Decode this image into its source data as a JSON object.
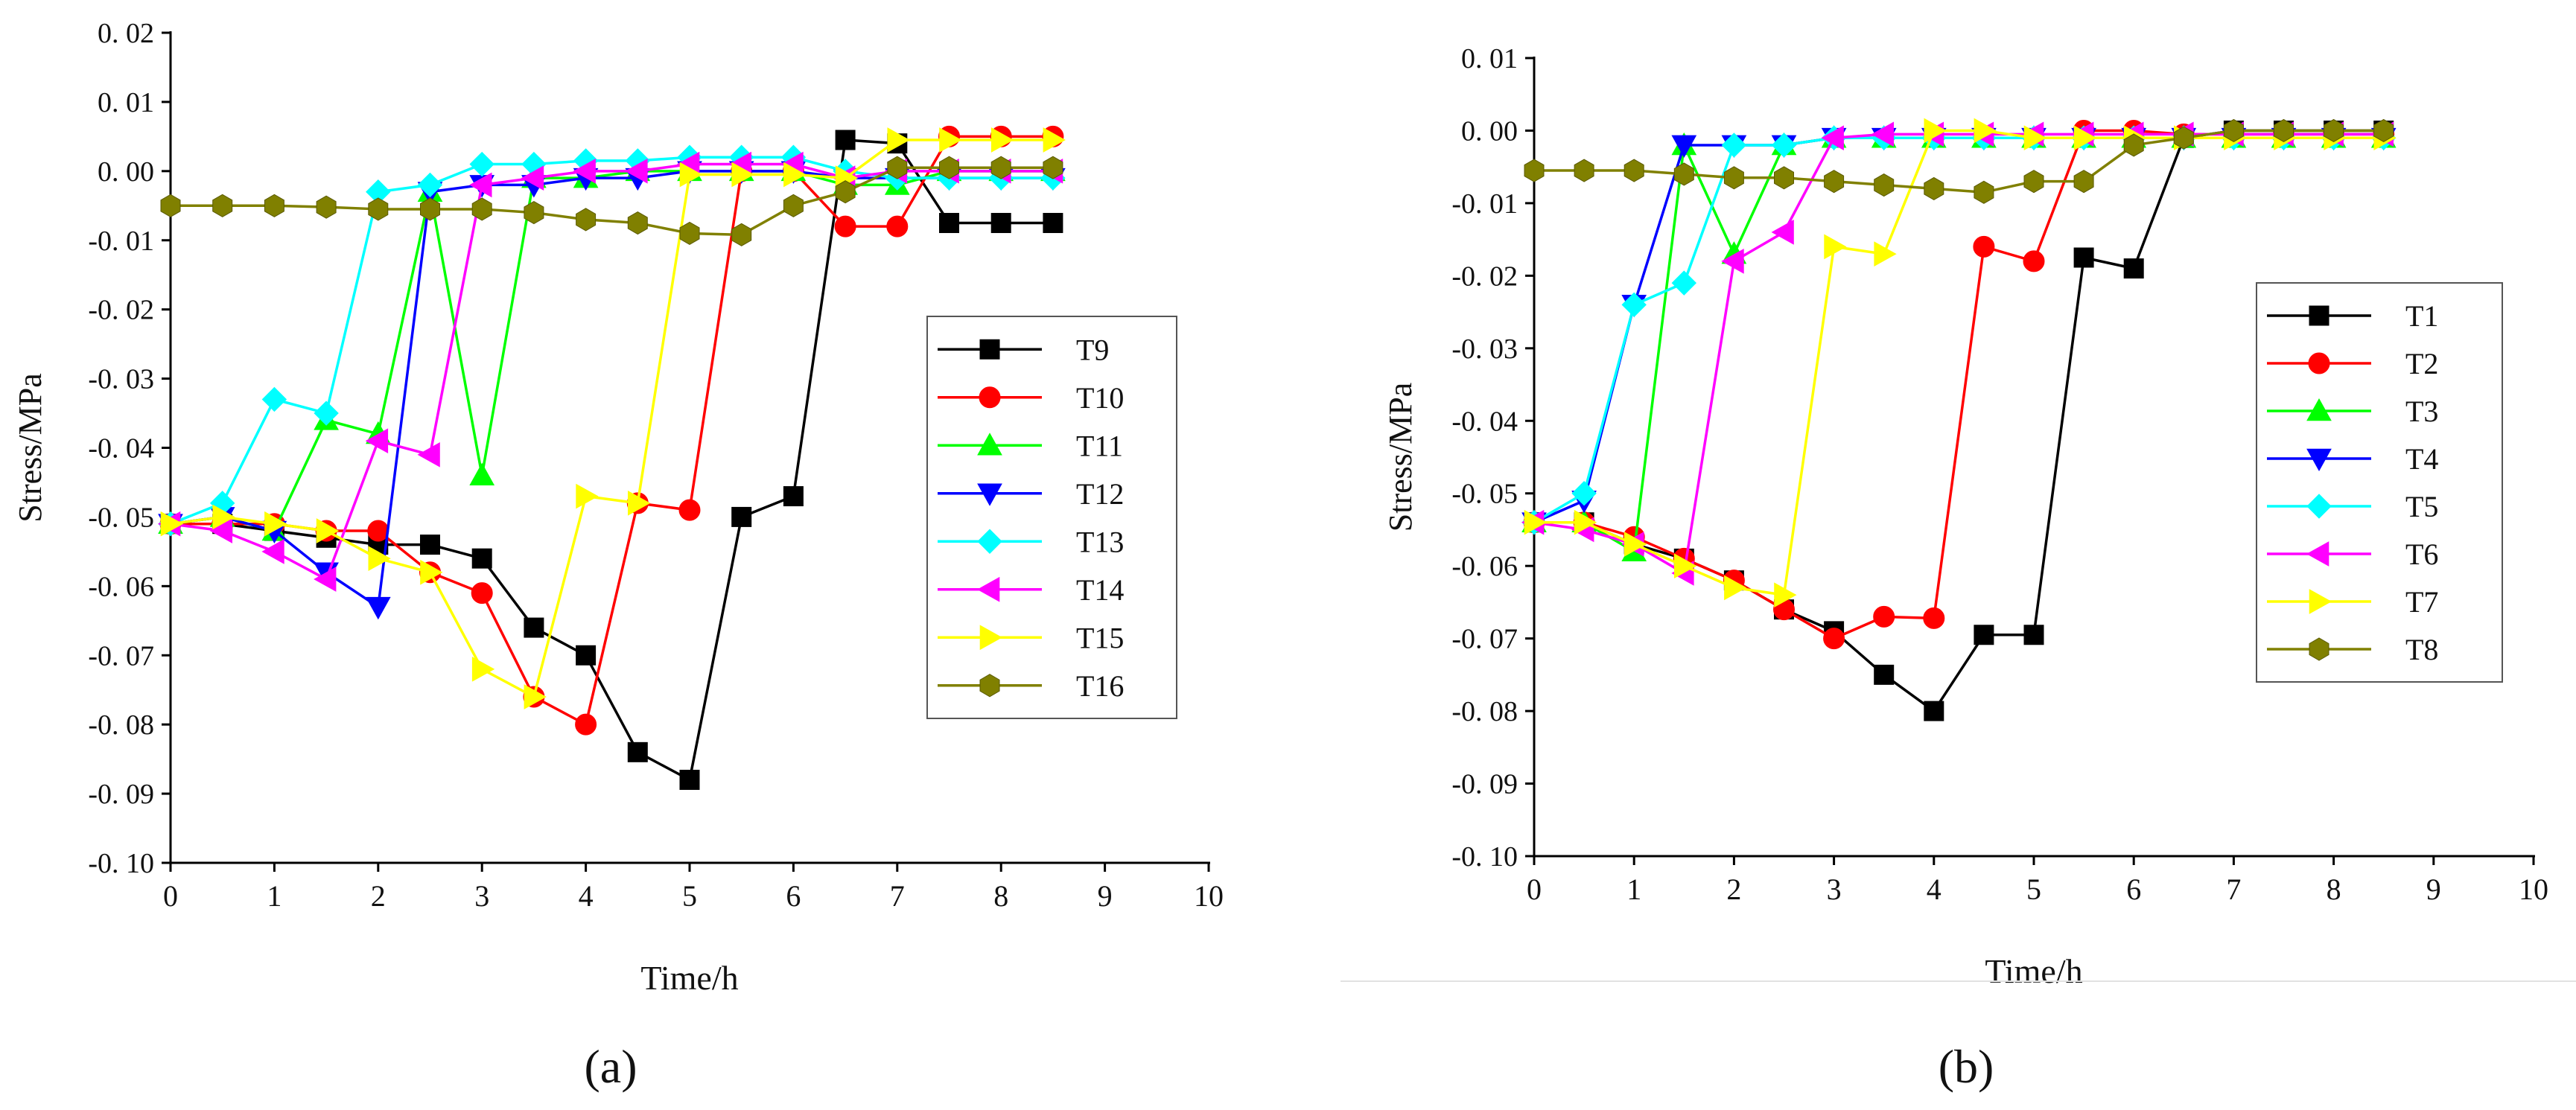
{
  "figure": {
    "panel_labels": [
      "(a)",
      "(b)"
    ]
  },
  "marker_legend": {
    "square": "■",
    "circle": "●",
    "triangle-up": "▲",
    "triangle-down": "▼",
    "diamond": "◆",
    "triangle-left": "◀",
    "triangle-right": "▶",
    "hexagon": "⬢"
  },
  "chart_data": [
    {
      "type": "line",
      "panel": "(a)",
      "title": "",
      "xlabel": "Time/h",
      "ylabel": "Stress/MPa",
      "xlim": [
        0,
        10
      ],
      "ylim": [
        -0.1,
        0.02
      ],
      "xticks": [
        0,
        1,
        2,
        3,
        4,
        5,
        6,
        7,
        8,
        9,
        10
      ],
      "xtick_labels": [
        "0",
        "1",
        "2",
        "3",
        "4",
        "5",
        "6",
        "7",
        "8",
        "9",
        "10"
      ],
      "yticks": [
        0.02,
        0.01,
        0.0,
        -0.01,
        -0.02,
        -0.03,
        -0.04,
        -0.05,
        -0.06,
        -0.07,
        -0.08,
        -0.09,
        -0.1
      ],
      "ytick_labels": [
        "0. 02",
        "0. 01",
        "0. 00",
        "-0. 01",
        "-0. 02",
        "-0. 03",
        "-0. 04",
        "-0. 05",
        "-0. 06",
        "-0. 07",
        "-0. 08",
        "-0. 09",
        "-0. 10"
      ],
      "grid": false,
      "legend_position": "right-middle",
      "series": [
        {
          "name": "T9",
          "color": "#000000",
          "marker": "square",
          "x": [
            0,
            0.5,
            1,
            1.5,
            2,
            2.5,
            3,
            3.5,
            4,
            4.5,
            5,
            5.5,
            6,
            6.5,
            7,
            7.5,
            8,
            8.5
          ],
          "y": [
            -0.051,
            -0.051,
            -0.052,
            -0.053,
            -0.054,
            -0.054,
            -0.056,
            -0.066,
            -0.07,
            -0.084,
            -0.088,
            -0.05,
            -0.047,
            0.0045,
            0.004,
            -0.0075,
            -0.0075,
            -0.0075
          ]
        },
        {
          "name": "T10",
          "color": "#ff0000",
          "marker": "circle",
          "x": [
            0,
            0.5,
            1,
            1.5,
            2,
            2.5,
            3,
            3.5,
            4,
            4.5,
            5,
            5.5,
            6,
            6.5,
            7,
            7.5,
            8,
            8.5
          ],
          "y": [
            -0.051,
            -0.051,
            -0.051,
            -0.052,
            -0.052,
            -0.058,
            -0.061,
            -0.076,
            -0.08,
            -0.048,
            -0.049,
            0.0,
            0.0,
            -0.008,
            -0.008,
            0.005,
            0.005,
            0.005
          ]
        },
        {
          "name": "T11",
          "color": "#00ff00",
          "marker": "triangle-up",
          "x": [
            0,
            0.5,
            1,
            1.5,
            2,
            2.5,
            3,
            3.5,
            4,
            4.5,
            5,
            5.5,
            6,
            6.5,
            7,
            7.5,
            8,
            8.5
          ],
          "y": [
            -0.051,
            -0.05,
            -0.052,
            -0.036,
            -0.038,
            -0.003,
            -0.044,
            -0.001,
            -0.001,
            0.0,
            0.0,
            0.0,
            0.0,
            -0.002,
            -0.002,
            0.0,
            0.0,
            0.0
          ]
        },
        {
          "name": "T12",
          "color": "#0000ff",
          "marker": "triangle-down",
          "x": [
            0,
            0.5,
            1,
            1.5,
            2,
            2.5,
            3,
            3.5,
            4,
            4.5,
            5,
            5.5,
            6,
            6.5,
            7,
            7.5,
            8,
            8.5
          ],
          "y": [
            -0.051,
            -0.05,
            -0.052,
            -0.058,
            -0.063,
            -0.003,
            -0.002,
            -0.002,
            -0.001,
            -0.001,
            0.0,
            0.0,
            0.0,
            -0.001,
            -0.001,
            -0.001,
            -0.001,
            -0.001
          ]
        },
        {
          "name": "T13",
          "color": "#00ffff",
          "marker": "diamond",
          "x": [
            0,
            0.5,
            1,
            1.5,
            2,
            2.5,
            3,
            3.5,
            4,
            4.5,
            5,
            5.5,
            6,
            6.5,
            7,
            7.5,
            8,
            8.5
          ],
          "y": [
            -0.051,
            -0.048,
            -0.033,
            -0.035,
            -0.003,
            -0.002,
            0.001,
            0.001,
            0.0015,
            0.0015,
            0.002,
            0.002,
            0.002,
            0.0,
            -0.001,
            -0.001,
            -0.001,
            -0.001
          ]
        },
        {
          "name": "T14",
          "color": "#ff00ff",
          "marker": "triangle-left",
          "x": [
            0,
            0.5,
            1,
            1.5,
            2,
            2.5,
            3,
            3.5,
            4,
            4.5,
            5,
            5.5,
            6,
            6.5,
            7,
            7.5,
            8,
            8.5
          ],
          "y": [
            -0.051,
            -0.052,
            -0.055,
            -0.059,
            -0.039,
            -0.041,
            -0.002,
            -0.001,
            0.0,
            0.0,
            0.001,
            0.001,
            0.001,
            -0.001,
            0.0,
            0.0,
            0.0,
            0.0
          ]
        },
        {
          "name": "T15",
          "color": "#ffff00",
          "marker": "triangle-right",
          "x": [
            0,
            0.5,
            1,
            1.5,
            2,
            2.5,
            3,
            3.5,
            4,
            4.5,
            5,
            5.5,
            6,
            6.5,
            7,
            7.5,
            8,
            8.5
          ],
          "y": [
            -0.051,
            -0.05,
            -0.051,
            -0.052,
            -0.056,
            -0.058,
            -0.072,
            -0.076,
            -0.047,
            -0.048,
            -0.0005,
            -0.0005,
            -0.0005,
            -0.001,
            0.0045,
            0.0045,
            0.0045,
            0.0045
          ]
        },
        {
          "name": "T16",
          "color": "#808000",
          "marker": "hexagon",
          "x": [
            0,
            0.5,
            1,
            1.5,
            2,
            2.5,
            3,
            3.5,
            4,
            4.5,
            5,
            5.5,
            6,
            6.5,
            7,
            7.5,
            8,
            8.5
          ],
          "y": [
            -0.005,
            -0.005,
            -0.005,
            -0.0052,
            -0.0055,
            -0.0055,
            -0.0055,
            -0.006,
            -0.007,
            -0.0075,
            -0.009,
            -0.0092,
            -0.005,
            -0.003,
            0.0005,
            0.0005,
            0.0005,
            0.0005
          ]
        }
      ]
    },
    {
      "type": "line",
      "panel": "(b)",
      "title": "",
      "xlabel": "Time/h",
      "ylabel": "Stress/MPa",
      "xlim": [
        0,
        10
      ],
      "ylim": [
        -0.1,
        0.01
      ],
      "xticks": [
        0,
        1,
        2,
        3,
        4,
        5,
        6,
        7,
        8,
        9,
        10
      ],
      "xtick_labels": [
        "0",
        "1",
        "2",
        "3",
        "4",
        "5",
        "6",
        "7",
        "8",
        "9",
        "10"
      ],
      "yticks": [
        0.01,
        0.0,
        -0.01,
        -0.02,
        -0.03,
        -0.04,
        -0.05,
        -0.06,
        -0.07,
        -0.08,
        -0.09,
        -0.1
      ],
      "ytick_labels": [
        "0. 01",
        "0. 00",
        "-0. 01",
        "-0. 02",
        "-0. 03",
        "-0. 04",
        "-0. 05",
        "-0. 06",
        "-0. 07",
        "-0. 08",
        "-0. 09",
        "-0. 10"
      ],
      "grid": false,
      "legend_position": "right-middle",
      "series": [
        {
          "name": "T1",
          "color": "#000000",
          "marker": "square",
          "x": [
            0,
            0.5,
            1,
            1.5,
            2,
            2.5,
            3,
            3.5,
            4,
            4.5,
            5,
            5.5,
            6,
            6.5,
            7,
            7.5,
            8,
            8.5
          ],
          "y": [
            -0.054,
            -0.054,
            -0.057,
            -0.059,
            -0.062,
            -0.066,
            -0.069,
            -0.075,
            -0.08,
            -0.0695,
            -0.0695,
            -0.0175,
            -0.019,
            -0.001,
            0.0,
            0.0,
            0.0,
            0.0
          ]
        },
        {
          "name": "T2",
          "color": "#ff0000",
          "marker": "circle",
          "x": [
            0,
            0.5,
            1,
            1.5,
            2,
            2.5,
            3,
            3.5,
            4,
            4.5,
            5,
            5.5,
            6,
            6.5,
            7,
            7.5,
            8,
            8.5
          ],
          "y": [
            -0.054,
            -0.054,
            -0.056,
            -0.059,
            -0.062,
            -0.066,
            -0.07,
            -0.067,
            -0.0672,
            -0.016,
            -0.018,
            0.0,
            0.0,
            -0.0005,
            -0.0005,
            -0.0005,
            -0.0005,
            -0.0005
          ]
        },
        {
          "name": "T3",
          "color": "#00ff00",
          "marker": "triangle-up",
          "x": [
            0,
            0.5,
            1,
            1.5,
            2,
            2.5,
            3,
            3.5,
            4,
            4.5,
            5,
            5.5,
            6,
            6.5,
            7,
            7.5,
            8,
            8.5
          ],
          "y": [
            -0.054,
            -0.054,
            -0.058,
            -0.002,
            -0.017,
            -0.002,
            -0.001,
            -0.001,
            -0.001,
            -0.001,
            -0.001,
            -0.001,
            -0.001,
            -0.001,
            -0.001,
            -0.001,
            -0.001,
            -0.001
          ]
        },
        {
          "name": "T4",
          "color": "#0000ff",
          "marker": "triangle-down",
          "x": [
            0,
            0.5,
            1,
            1.5,
            2,
            2.5,
            3,
            3.5,
            4,
            4.5,
            5,
            5.5,
            6,
            6.5,
            7,
            7.5,
            8,
            8.5
          ],
          "y": [
            -0.054,
            -0.051,
            -0.024,
            -0.002,
            -0.002,
            -0.002,
            -0.001,
            -0.001,
            -0.001,
            -0.001,
            -0.001,
            -0.001,
            -0.001,
            -0.001,
            -0.001,
            -0.001,
            -0.001,
            -0.001
          ]
        },
        {
          "name": "T5",
          "color": "#00ffff",
          "marker": "diamond",
          "x": [
            0,
            0.5,
            1,
            1.5,
            2,
            2.5,
            3,
            3.5,
            4,
            4.5,
            5,
            5.5,
            6,
            6.5,
            7,
            7.5,
            8,
            8.5
          ],
          "y": [
            -0.054,
            -0.05,
            -0.024,
            -0.021,
            -0.002,
            -0.002,
            -0.001,
            -0.001,
            -0.001,
            -0.001,
            -0.001,
            -0.001,
            -0.001,
            -0.001,
            -0.001,
            -0.001,
            -0.001,
            -0.001
          ]
        },
        {
          "name": "T6",
          "color": "#ff00ff",
          "marker": "triangle-left",
          "x": [
            0,
            0.5,
            1,
            1.5,
            2,
            2.5,
            3,
            3.5,
            4,
            4.5,
            5,
            5.5,
            6,
            6.5,
            7,
            7.5,
            8,
            8.5
          ],
          "y": [
            -0.054,
            -0.055,
            -0.057,
            -0.061,
            -0.018,
            -0.014,
            -0.001,
            -0.0005,
            -0.0005,
            -0.0005,
            -0.0005,
            -0.0005,
            -0.0005,
            -0.0005,
            -0.0005,
            -0.0005,
            -0.0005,
            -0.0005
          ]
        },
        {
          "name": "T7",
          "color": "#ffff00",
          "marker": "triangle-right",
          "x": [
            0,
            0.5,
            1,
            1.5,
            2,
            2.5,
            3,
            3.5,
            4,
            4.5,
            5,
            5.5,
            6,
            6.5,
            7,
            7.5,
            8,
            8.5
          ],
          "y": [
            -0.054,
            -0.054,
            -0.057,
            -0.06,
            -0.063,
            -0.064,
            -0.016,
            -0.017,
            0.0,
            0.0,
            -0.001,
            -0.001,
            -0.001,
            -0.001,
            -0.001,
            -0.001,
            -0.001,
            -0.001
          ]
        },
        {
          "name": "T8",
          "color": "#808000",
          "marker": "hexagon",
          "x": [
            0,
            0.5,
            1,
            1.5,
            2,
            2.5,
            3,
            3.5,
            4,
            4.5,
            5,
            5.5,
            6,
            6.5,
            7,
            7.5,
            8,
            8.5
          ],
          "y": [
            -0.0055,
            -0.0055,
            -0.0055,
            -0.006,
            -0.0065,
            -0.0065,
            -0.007,
            -0.0075,
            -0.008,
            -0.0085,
            -0.007,
            -0.007,
            -0.002,
            -0.001,
            0.0,
            0.0,
            0.0,
            0.0
          ]
        }
      ]
    }
  ]
}
